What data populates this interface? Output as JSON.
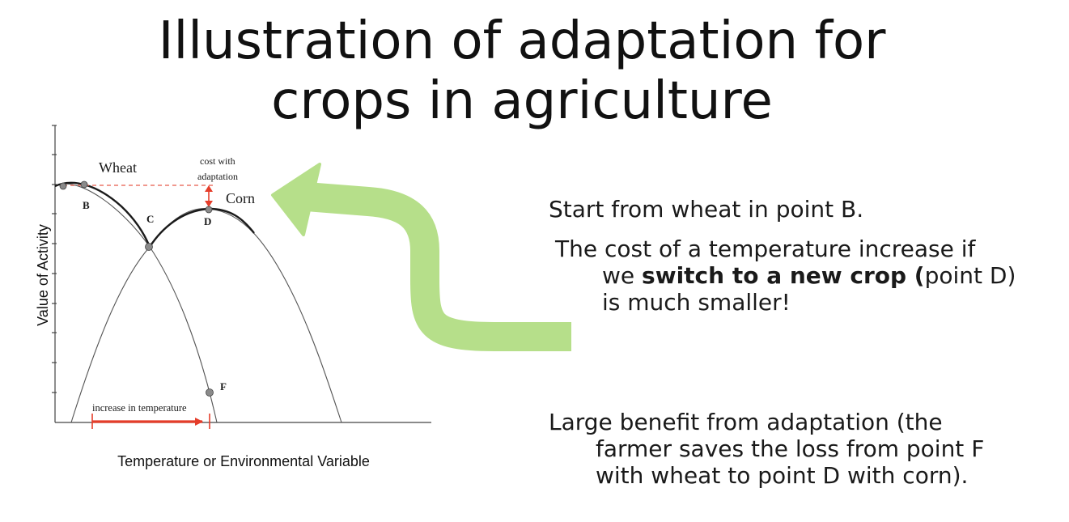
{
  "title": {
    "line1": "Illustration of adaptation for",
    "line2": "crops in agriculture"
  },
  "diagram": {
    "y_axis_label": "Value of Activity",
    "x_axis_label": "Temperature or Environmental Variable",
    "curve_wheat_label": "Wheat",
    "curve_corn_label": "Corn",
    "cost_label_line1": "cost with",
    "cost_label_line2": "adaptation",
    "point_B": "B",
    "point_C": "C",
    "point_D": "D",
    "point_F": "F",
    "increase_label": "increase in temperature",
    "colors": {
      "curve": "#1a1a1a",
      "thin_curve": "#555555",
      "red": "#e53d2a",
      "dashed": "#e85a4a",
      "arrow_green": "#b6df8a",
      "point_fill": "#8a8a8a"
    }
  },
  "text": {
    "start_line": "Start from wheat in point B.",
    "cost_line1": "The cost of a temperature increase if",
    "cost_line2_pre": "we ",
    "cost_line2_bold": "switch to a new crop (",
    "cost_line2_post": "point D)",
    "cost_line3": "is much smaller!",
    "benefit_line1": "Large benefit from adaptation (the",
    "benefit_line2": "farmer saves the loss from point F",
    "benefit_line3": "with wheat to point D with corn)."
  }
}
